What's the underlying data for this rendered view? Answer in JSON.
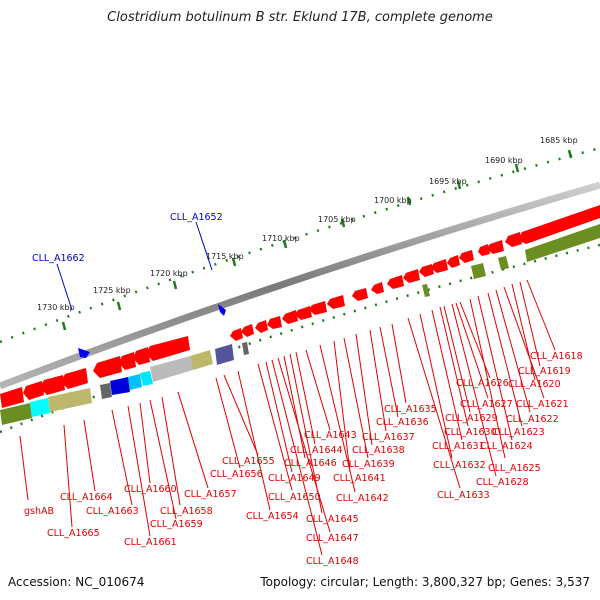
{
  "title": "Clostridium botulinum B str. Eklund 17B, complete genome",
  "accession": "Accession: NC_010674",
  "topology": "Topology: circular; Length: 3,800,327 bp; Genes: 3,537",
  "ticks": [
    {
      "label": "1685 kbp"
    },
    {
      "label": "1690 kbp"
    },
    {
      "label": "1695 kbp"
    },
    {
      "label": "1700 kbp"
    },
    {
      "label": "1705 kbp"
    },
    {
      "label": "1710 kbp"
    },
    {
      "label": "1715 kbp"
    },
    {
      "label": "1720 kbp"
    },
    {
      "label": "1725 kbp"
    },
    {
      "label": "1730 kbp"
    }
  ],
  "blue_labels": [
    {
      "label": "CLL_A1652"
    },
    {
      "label": "CLL_A1662"
    }
  ],
  "gene_labels": [
    {
      "label": "CLL_A1618"
    },
    {
      "label": "CLL_A1619"
    },
    {
      "label": "CLL_A1620"
    },
    {
      "label": "CLL_A1621"
    },
    {
      "label": "CLL_A1622"
    },
    {
      "label": "CLL_A1623"
    },
    {
      "label": "CLL_A1624"
    },
    {
      "label": "CLL_A1625"
    },
    {
      "label": "CLL_A1626"
    },
    {
      "label": "CLL_A1627"
    },
    {
      "label": "CLL_A1628"
    },
    {
      "label": "CLL_A1629"
    },
    {
      "label": "CLL_A1630"
    },
    {
      "label": "CLL_A1631"
    },
    {
      "label": "CLL_A1632"
    },
    {
      "label": "CLL_A1633"
    },
    {
      "label": "CLL_A1635"
    },
    {
      "label": "CLL_A1636"
    },
    {
      "label": "CLL_A1637"
    },
    {
      "label": "CLL_A1638"
    },
    {
      "label": "CLL_A1639"
    },
    {
      "label": "CLL_A1641"
    },
    {
      "label": "CLL_A1642"
    },
    {
      "label": "CLL_A1643"
    },
    {
      "label": "CLL_A1644"
    },
    {
      "label": "CLL_A1645"
    },
    {
      "label": "CLL_A1646"
    },
    {
      "label": "CLL_A1647"
    },
    {
      "label": "CLL_A1648"
    },
    {
      "label": "CLL_A1649"
    },
    {
      "label": "CLL_A1650"
    },
    {
      "label": "CLL_A1654"
    },
    {
      "label": "CLL_A1655"
    },
    {
      "label": "CLL_A1656"
    },
    {
      "label": "CLL_A1657"
    },
    {
      "label": "CLL_A1658"
    },
    {
      "label": "CLL_A1659"
    },
    {
      "label": "CLL_A1660"
    },
    {
      "label": "CLL_A1661"
    },
    {
      "label": "CLL_A1663"
    },
    {
      "label": "CLL_A1664"
    },
    {
      "label": "CLL_A1665"
    },
    {
      "label": "gshAB"
    }
  ],
  "colors": {
    "backbone": "#8a8a8a",
    "gene_red": "#ff0000",
    "gene_blue": "#0000ff",
    "olive": "#6b8e23",
    "tan": "#bdb76b",
    "cyan": "#00e5ff",
    "tick_green": "#1e7b1e",
    "label_red": "#e00000",
    "label_blue": "#0000cc"
  }
}
